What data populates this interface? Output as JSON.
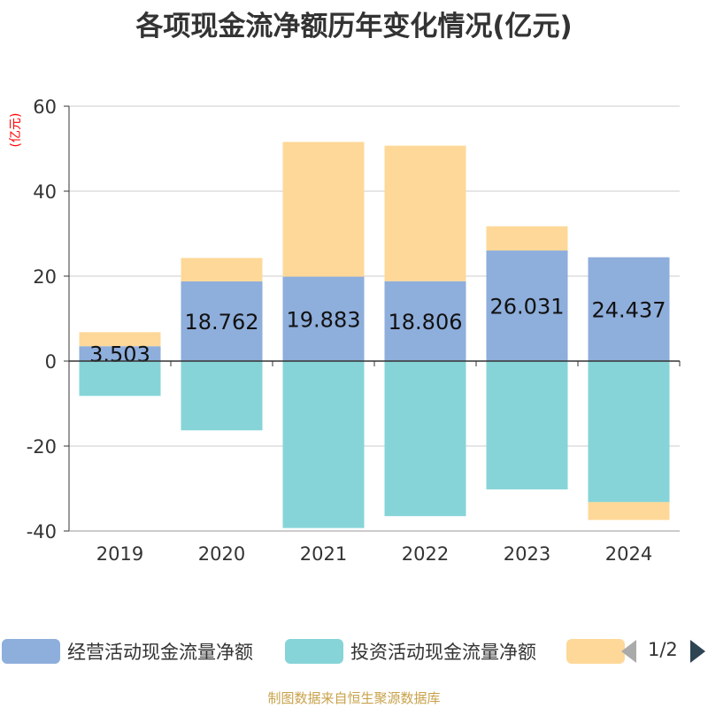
{
  "chart_data": {
    "type": "bar",
    "stacked": true,
    "title": "各项现金流净额历年变化情况(亿元)",
    "ylabel": "(亿元)",
    "xlabel": "",
    "ylim": [
      -40,
      60
    ],
    "yticks": [
      -40,
      -20,
      0,
      20,
      40,
      60
    ],
    "categories": [
      "2019",
      "2020",
      "2021",
      "2022",
      "2023",
      "2024"
    ],
    "series": [
      {
        "name": "经营活动现金流量净额",
        "color": "#8eaedb",
        "values": [
          3.503,
          18.762,
          19.883,
          18.806,
          26.031,
          24.437
        ],
        "labels": [
          "3.503",
          "18.762",
          "19.883",
          "18.806",
          "26.031",
          "24.437"
        ]
      },
      {
        "name": "投资活动现金流量净额",
        "color": "#86d4d8",
        "values": [
          -8.2,
          -16.3,
          -39.3,
          -36.5,
          -30.2,
          -33.2
        ]
      },
      {
        "name": "",
        "color": "#fed898",
        "values": [
          3.3,
          5.5,
          31.7,
          31.9,
          5.7,
          -4.2
        ]
      }
    ],
    "legend_position": "bottom"
  },
  "legend": {
    "items": [
      {
        "label": "经营活动现金流量净额",
        "color": "#8eaedb"
      },
      {
        "label": "投资活动现金流量净额",
        "color": "#86d4d8"
      },
      {
        "label": "",
        "color": "#fed898"
      }
    ],
    "page": "1/2"
  },
  "source": "制图数据来自恒生聚源数据库"
}
